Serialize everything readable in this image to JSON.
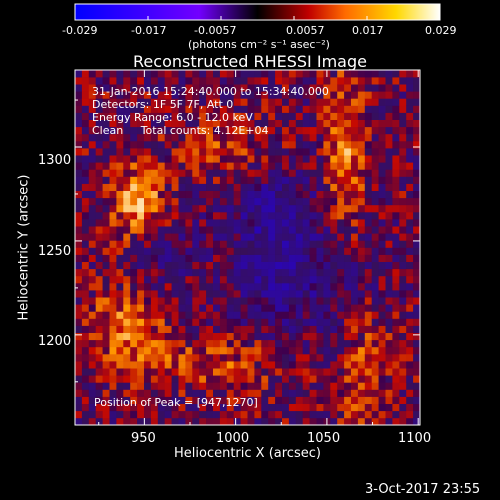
{
  "chart_data": {
    "type": "heatmap",
    "title": "Reconstructed RHESSI Image",
    "xlabel": "Heliocentric X (arcsec)",
    "ylabel": "Heliocentric Y (arcsec)",
    "xlim": [
      912,
      1101
    ],
    "ylim": [
      1152,
      1341
    ],
    "xticks": [
      950,
      1000,
      1050,
      1100
    ],
    "yticks": [
      1200,
      1250,
      1300
    ],
    "grid": false,
    "colorbar": {
      "range": [
        -0.029,
        0.029
      ],
      "ticks": [
        "-0.029",
        "-0.017",
        "-0.0057",
        "0.0057",
        "0.017",
        "0.029"
      ],
      "label": "(photons cm⁻² s⁻¹ asec⁻²)"
    },
    "colormap": [
      "#0000ff",
      "#3a00ff",
      "#7200ff",
      "#000000",
      "#ff6a00",
      "#ffd800",
      "#ffffff"
    ],
    "map_base_color": "#2a0a55",
    "annotations": [
      "31-Jan-2016 15:24:40.000 to 15:34:40.000",
      "Detectors: 1F 5F 7F, Att 0",
      "Energy Range: 6.0 - 12.0 keV",
      "Clean     Total counts: 4.12E+04"
    ],
    "peak_text": "Position of Peak = [947,1270]",
    "peak": [
      947,
      1270
    ],
    "features": [
      {
        "x": 1022,
        "y": 1250,
        "sx": 18,
        "sy": 32,
        "amp": -0.014
      },
      {
        "x": 1062,
        "y": 1228,
        "sx": 14,
        "sy": 26,
        "amp": -0.01
      },
      {
        "x": 960,
        "y": 1245,
        "sx": 12,
        "sy": 14,
        "amp": -0.008
      },
      {
        "x": 947,
        "y": 1270,
        "sx": 10,
        "sy": 14,
        "amp": 0.02
      },
      {
        "x": 1060,
        "y": 1290,
        "sx": 8,
        "sy": 35,
        "amp": 0.016
      },
      {
        "x": 940,
        "y": 1205,
        "sx": 14,
        "sy": 16,
        "amp": 0.014
      },
      {
        "x": 990,
        "y": 1185,
        "sx": 30,
        "sy": 10,
        "amp": 0.01
      },
      {
        "x": 1000,
        "y": 1300,
        "sx": 22,
        "sy": 12,
        "amp": 0.01
      },
      {
        "x": 1070,
        "y": 1185,
        "sx": 10,
        "sy": 30,
        "amp": 0.012
      }
    ]
  },
  "footer": {
    "date": "3-Oct-2017 23:55"
  }
}
